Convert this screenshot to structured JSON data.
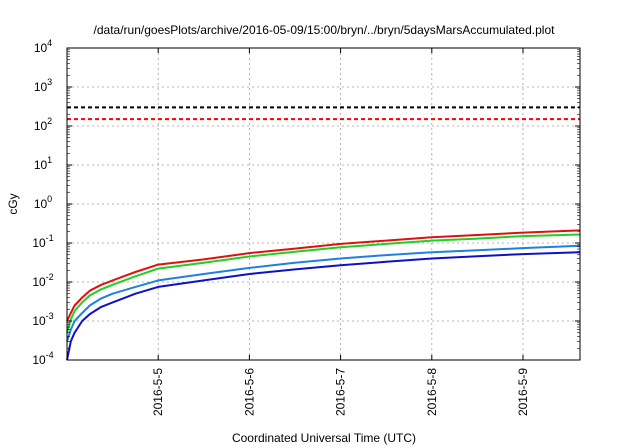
{
  "chart_data": {
    "type": "line",
    "title": "/data/run/goesPlots/archive/2016-05-09/15:00/bryn/../bryn/5daysMarsAccumulated.plot",
    "xlabel": "Coordinated Universal Time (UTC)",
    "ylabel": "cGy",
    "yscale": "log",
    "ylim": [
      0.0001,
      10000
    ],
    "xlim": [
      "2016-05-04T00:00",
      "2016-05-09T15:00"
    ],
    "grid": true,
    "y_ticks": [
      {
        "base": "10",
        "exp": "-4",
        "value": 0.0001
      },
      {
        "base": "10",
        "exp": "-3",
        "value": 0.001
      },
      {
        "base": "10",
        "exp": "-2",
        "value": 0.01
      },
      {
        "base": "10",
        "exp": "-1",
        "value": 0.1
      },
      {
        "base": "10",
        "exp": "0",
        "value": 1
      },
      {
        "base": "10",
        "exp": "1",
        "value": 10
      },
      {
        "base": "10",
        "exp": "2",
        "value": 100
      },
      {
        "base": "10",
        "exp": "3",
        "value": 1000
      },
      {
        "base": "10",
        "exp": "4",
        "value": 10000
      }
    ],
    "x_ticks": [
      {
        "label": "2016-5-5",
        "value": "2016-05-05T00:00"
      },
      {
        "label": "2016-5-6",
        "value": "2016-05-06T00:00"
      },
      {
        "label": "2016-5-7",
        "value": "2016-05-07T00:00"
      },
      {
        "label": "2016-5-8",
        "value": "2016-05-08T00:00"
      },
      {
        "label": "2016-5-9",
        "value": "2016-05-09T00:00"
      }
    ],
    "reference_lines": [
      {
        "value": 300,
        "color": "#000000",
        "style": "dashed"
      },
      {
        "value": 150,
        "color": "#ff0000",
        "style": "dashed"
      }
    ],
    "series": [
      {
        "color": "#e01010",
        "x": [
          "2016-05-04T00:00",
          "2016-05-04T01:00",
          "2016-05-04T02:00",
          "2016-05-04T04:00",
          "2016-05-04T06:00",
          "2016-05-04T09:00",
          "2016-05-04T12:00",
          "2016-05-04T18:00",
          "2016-05-05T00:00",
          "2016-05-05T12:00",
          "2016-05-06T00:00",
          "2016-05-06T12:00",
          "2016-05-07T00:00",
          "2016-05-07T12:00",
          "2016-05-08T00:00",
          "2016-05-08T12:00",
          "2016-05-09T00:00",
          "2016-05-09T15:00"
        ],
        "y": [
          0.001,
          0.0016,
          0.0025,
          0.004,
          0.006,
          0.0085,
          0.011,
          0.018,
          0.028,
          0.038,
          0.055,
          0.072,
          0.095,
          0.115,
          0.14,
          0.16,
          0.185,
          0.21
        ]
      },
      {
        "color": "#20d020",
        "x": [
          "2016-05-04T00:00",
          "2016-05-04T01:00",
          "2016-05-04T02:00",
          "2016-05-04T04:00",
          "2016-05-04T06:00",
          "2016-05-04T09:00",
          "2016-05-04T12:00",
          "2016-05-04T18:00",
          "2016-05-05T00:00",
          "2016-05-05T12:00",
          "2016-05-06T00:00",
          "2016-05-06T12:00",
          "2016-05-07T00:00",
          "2016-05-07T12:00",
          "2016-05-08T00:00",
          "2016-05-08T12:00",
          "2016-05-09T00:00",
          "2016-05-09T15:00"
        ],
        "y": [
          0.0005,
          0.0011,
          0.0018,
          0.003,
          0.0045,
          0.0065,
          0.0085,
          0.014,
          0.022,
          0.031,
          0.045,
          0.06,
          0.078,
          0.095,
          0.115,
          0.13,
          0.15,
          0.165
        ]
      },
      {
        "color": "#2080e0",
        "x": [
          "2016-05-04T00:00",
          "2016-05-04T01:00",
          "2016-05-04T02:00",
          "2016-05-04T04:00",
          "2016-05-04T06:00",
          "2016-05-04T09:00",
          "2016-05-04T12:00",
          "2016-05-04T18:00",
          "2016-05-05T00:00",
          "2016-05-05T12:00",
          "2016-05-06T00:00",
          "2016-05-06T12:00",
          "2016-05-07T00:00",
          "2016-05-07T12:00",
          "2016-05-08T00:00",
          "2016-05-08T12:00",
          "2016-05-09T00:00",
          "2016-05-09T15:00"
        ],
        "y": [
          0.0003,
          0.0006,
          0.001,
          0.0016,
          0.0025,
          0.0038,
          0.005,
          0.0075,
          0.011,
          0.016,
          0.023,
          0.031,
          0.04,
          0.049,
          0.058,
          0.065,
          0.074,
          0.085
        ]
      },
      {
        "color": "#1010c8",
        "x": [
          "2016-05-04T00:00",
          "2016-05-04T01:00",
          "2016-05-04T02:00",
          "2016-05-04T04:00",
          "2016-05-04T06:00",
          "2016-05-04T09:00",
          "2016-05-04T12:00",
          "2016-05-04T18:00",
          "2016-05-05T00:00",
          "2016-05-05T12:00",
          "2016-05-06T00:00",
          "2016-05-06T12:00",
          "2016-05-07T00:00",
          "2016-05-07T12:00",
          "2016-05-08T00:00",
          "2016-05-08T12:00",
          "2016-05-09T00:00",
          "2016-05-09T15:00"
        ],
        "y": [
          0.0001,
          0.0003,
          0.0005,
          0.001,
          0.0015,
          0.0023,
          0.003,
          0.005,
          0.0075,
          0.011,
          0.016,
          0.021,
          0.027,
          0.033,
          0.04,
          0.046,
          0.052,
          0.058
        ]
      }
    ]
  }
}
